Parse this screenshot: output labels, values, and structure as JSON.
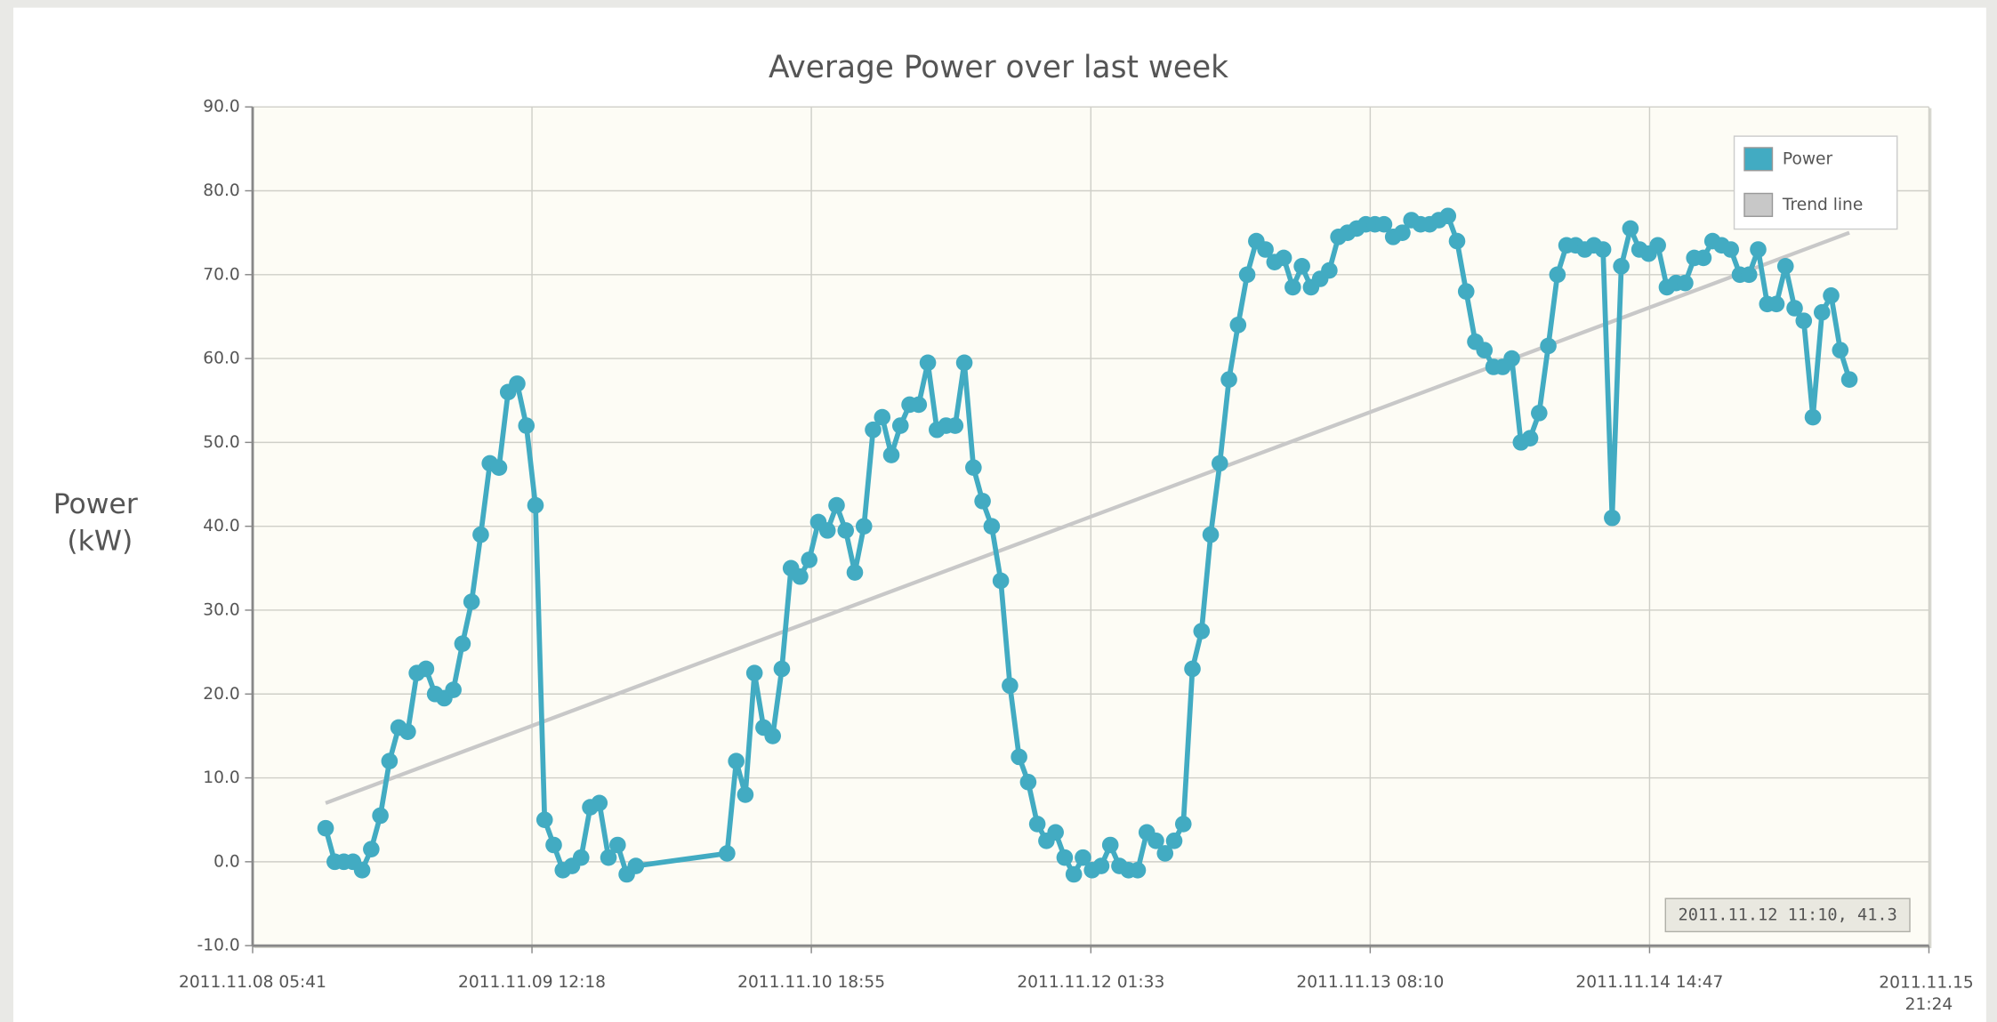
{
  "chart_data": {
    "type": "line",
    "title": "Average Power over last week",
    "ylabel": "Power (kW)",
    "tooltip": "2011.11.12 11:10, 41.3",
    "xlim": [
      "2011-11-08T05:41",
      "2011-11-15T21:24"
    ],
    "xticks": [
      {
        "value": "2011-11-08T05:41",
        "label": "2011.11.08 05:41"
      },
      {
        "value": "2011-11-09T12:18",
        "label": "2011.11.09 12:18"
      },
      {
        "value": "2011-11-10T18:55",
        "label": "2011.11.10 18:55"
      },
      {
        "value": "2011-11-12T01:33",
        "label": "2011.11.12 01:33"
      },
      {
        "value": "2011-11-13T08:10",
        "label": "2011.11.13 08:10"
      },
      {
        "value": "2011-11-14T14:47",
        "label": "2011.11.14 14:47"
      },
      {
        "value": "2011-11-15T21:24",
        "label": "2011.11.15 21:24"
      }
    ],
    "ylim": [
      -10,
      90
    ],
    "yticks": [
      {
        "value": -10,
        "label": "-10.0"
      },
      {
        "value": 0,
        "label": "0.0"
      },
      {
        "value": 10,
        "label": "10.0"
      },
      {
        "value": 20,
        "label": "20.0"
      },
      {
        "value": 30,
        "label": "30.0"
      },
      {
        "value": 40,
        "label": "40.0"
      },
      {
        "value": 50,
        "label": "50.0"
      },
      {
        "value": 60,
        "label": "60.0"
      },
      {
        "value": 70,
        "label": "70.0"
      },
      {
        "value": 80,
        "label": "80.0"
      },
      {
        "value": 90,
        "label": "90.0"
      }
    ],
    "grid": true,
    "legend": "top-right",
    "x": [
      "2011-11-08T13:41",
      "2011-11-08T14:41",
      "2011-11-08T15:41",
      "2011-11-08T16:41",
      "2011-11-08T17:41",
      "2011-11-08T18:41",
      "2011-11-08T19:41",
      "2011-11-08T20:41",
      "2011-11-08T21:41",
      "2011-11-08T22:41",
      "2011-11-08T23:41",
      "2011-11-09T00:41",
      "2011-11-09T01:41",
      "2011-11-09T02:41",
      "2011-11-09T03:41",
      "2011-11-09T04:41",
      "2011-11-09T05:41",
      "2011-11-09T06:41",
      "2011-11-09T07:41",
      "2011-11-09T08:41",
      "2011-11-09T09:41",
      "2011-11-09T10:41",
      "2011-11-09T11:41",
      "2011-11-09T12:41",
      "2011-11-09T13:41",
      "2011-11-09T14:41",
      "2011-11-09T15:41",
      "2011-11-09T16:41",
      "2011-11-09T17:41",
      "2011-11-09T18:41",
      "2011-11-09T19:41",
      "2011-11-09T20:41",
      "2011-11-09T21:41",
      "2011-11-09T22:41",
      "2011-11-09T23:41",
      "2011-11-10T09:41",
      "2011-11-10T10:41",
      "2011-11-10T11:41",
      "2011-11-10T12:41",
      "2011-11-10T13:41",
      "2011-11-10T14:41",
      "2011-11-10T15:41",
      "2011-11-10T16:41",
      "2011-11-10T17:41",
      "2011-11-10T18:41",
      "2011-11-10T19:41",
      "2011-11-10T20:41",
      "2011-11-10T21:41",
      "2011-11-10T22:41",
      "2011-11-10T23:41",
      "2011-11-11T00:41",
      "2011-11-11T01:41",
      "2011-11-11T02:41",
      "2011-11-11T03:41",
      "2011-11-11T04:41",
      "2011-11-11T05:41",
      "2011-11-11T06:41",
      "2011-11-11T07:41",
      "2011-11-11T08:41",
      "2011-11-11T09:41",
      "2011-11-11T10:41",
      "2011-11-11T11:41",
      "2011-11-11T12:41",
      "2011-11-11T13:41",
      "2011-11-11T14:41",
      "2011-11-11T15:41",
      "2011-11-11T16:41",
      "2011-11-11T17:41",
      "2011-11-11T18:41",
      "2011-11-11T19:41",
      "2011-11-11T20:41",
      "2011-11-11T21:41",
      "2011-11-11T22:41",
      "2011-11-11T23:41",
      "2011-11-12T00:41",
      "2011-11-12T01:41",
      "2011-11-12T02:41",
      "2011-11-12T03:41",
      "2011-11-12T04:41",
      "2011-11-12T05:41",
      "2011-11-12T06:41",
      "2011-11-12T07:41",
      "2011-11-12T08:41",
      "2011-11-12T09:41",
      "2011-11-12T10:41",
      "2011-11-12T11:41",
      "2011-11-12T12:41",
      "2011-11-12T13:41",
      "2011-11-12T14:41",
      "2011-11-12T15:41",
      "2011-11-12T16:41",
      "2011-11-12T17:41",
      "2011-11-12T18:41",
      "2011-11-12T19:41",
      "2011-11-12T20:41",
      "2011-11-12T21:41",
      "2011-11-12T22:41",
      "2011-11-12T23:41",
      "2011-11-13T00:41",
      "2011-11-13T01:41",
      "2011-11-13T02:41",
      "2011-11-13T03:41",
      "2011-11-13T04:41",
      "2011-11-13T05:41",
      "2011-11-13T06:41",
      "2011-11-13T07:41",
      "2011-11-13T08:41",
      "2011-11-13T09:41",
      "2011-11-13T10:41",
      "2011-11-13T11:41",
      "2011-11-13T12:41",
      "2011-11-13T13:41",
      "2011-11-13T14:41",
      "2011-11-13T15:41",
      "2011-11-13T16:41",
      "2011-11-13T17:41",
      "2011-11-13T18:41",
      "2011-11-13T19:41",
      "2011-11-13T20:41",
      "2011-11-13T21:41",
      "2011-11-13T22:41",
      "2011-11-13T23:41",
      "2011-11-14T00:41",
      "2011-11-14T01:41",
      "2011-11-14T02:41",
      "2011-11-14T03:41",
      "2011-11-14T04:41",
      "2011-11-14T05:41",
      "2011-11-14T06:41",
      "2011-11-14T07:41",
      "2011-11-14T08:41",
      "2011-11-14T09:41",
      "2011-11-14T10:41",
      "2011-11-14T11:41",
      "2011-11-14T12:41",
      "2011-11-14T13:41",
      "2011-11-14T14:41",
      "2011-11-14T15:41",
      "2011-11-14T16:41",
      "2011-11-14T17:41",
      "2011-11-14T18:41",
      "2011-11-14T19:41",
      "2011-11-14T20:41",
      "2011-11-14T21:41",
      "2011-11-14T22:41",
      "2011-11-14T23:41",
      "2011-11-15T00:41",
      "2011-11-15T01:41",
      "2011-11-15T02:41",
      "2011-11-15T03:41",
      "2011-11-15T04:41",
      "2011-11-15T05:41",
      "2011-11-15T06:41",
      "2011-11-15T07:41",
      "2011-11-15T08:41",
      "2011-11-15T09:41",
      "2011-11-15T10:41",
      "2011-11-15T11:41",
      "2011-11-15T12:41"
    ],
    "series": [
      {
        "name": "Power",
        "color": "#42abc2",
        "values": [
          4,
          0,
          0,
          0,
          -1,
          1.5,
          5.5,
          12,
          16,
          15.5,
          22.5,
          23,
          20,
          19.5,
          20.5,
          26,
          31,
          39,
          47.5,
          47,
          56,
          57,
          52,
          42.5,
          5,
          2,
          -1,
          -0.5,
          0.5,
          6.5,
          7,
          0.5,
          2,
          -1.5,
          -0.5,
          1,
          12,
          8,
          22.5,
          16,
          15,
          23,
          35,
          34,
          36,
          40.5,
          39.5,
          42.5,
          39.5,
          34.5,
          40,
          51.5,
          53,
          48.5,
          52,
          54.5,
          54.5,
          59.5,
          51.5,
          52,
          52,
          59.5,
          47,
          43,
          40,
          33.5,
          21,
          12.5,
          9.5,
          4.5,
          2.5,
          3.5,
          0.5,
          -1.5,
          0.5,
          -1,
          -0.5,
          2,
          -0.5,
          -1,
          -1,
          3.5,
          2.5,
          1,
          2.5,
          4.5,
          23,
          27.5,
          39,
          47.5,
          57.5,
          64,
          70,
          74,
          73,
          71.5,
          72,
          68.5,
          71,
          68.5,
          69.5,
          70.5,
          74.5,
          75,
          75.5,
          76,
          76,
          76,
          74.5,
          75,
          76.5,
          76,
          76,
          76.5,
          77,
          74,
          68,
          62,
          61,
          59,
          59,
          60,
          50,
          50.5,
          53.5,
          61.5,
          70,
          73.5,
          73.5,
          73,
          73.5,
          73,
          41,
          71,
          75.5,
          73,
          72.5,
          73.5,
          68.5,
          69,
          69,
          72,
          72,
          74,
          73.5,
          73,
          70,
          70,
          73,
          66.5,
          66.5,
          71,
          66,
          64.5,
          53,
          65.5,
          67.5,
          61,
          57.5
        ]
      },
      {
        "name": "Trend line",
        "color": "#c8c8c8",
        "x": [
          "2011-11-08T13:41",
          "2011-11-15T12:41"
        ],
        "values": [
          7,
          75
        ]
      }
    ]
  }
}
